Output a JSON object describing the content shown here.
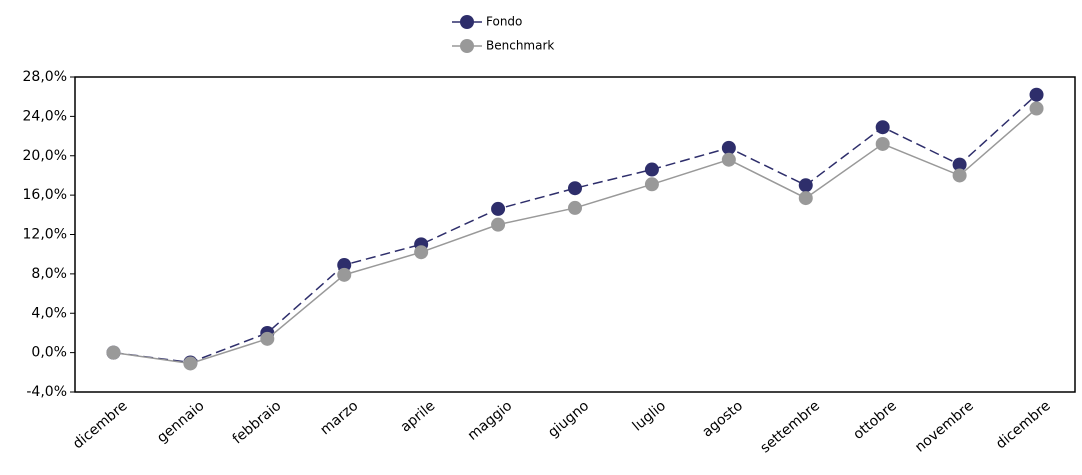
{
  "chart_data": {
    "type": "line",
    "categories": [
      "dicembre",
      "gennaio",
      "febbraio",
      "marzo",
      "aprile",
      "maggio",
      "giugno",
      "luglio",
      "agosto",
      "settembre",
      "ottobre",
      "novembre",
      "dicembre"
    ],
    "series": [
      {
        "name": "Fondo",
        "color": "#2e2e6b",
        "dash": true,
        "values": [
          0,
          -1.0,
          2.0,
          8.9,
          11.0,
          14.6,
          16.7,
          18.6,
          20.8,
          17.0,
          22.9,
          19.1,
          26.2
        ]
      },
      {
        "name": "Benchmark",
        "color": "#999999",
        "dash": false,
        "values": [
          0,
          -1.1,
          1.4,
          7.9,
          10.2,
          13.0,
          14.7,
          17.1,
          19.6,
          15.7,
          21.2,
          18.0,
          24.8
        ]
      }
    ],
    "ylim": [
      -4,
      28
    ],
    "yticks": [
      {
        "value": -4,
        "label": "-4,0%"
      },
      {
        "value": 0,
        "label": "0,0%"
      },
      {
        "value": 4,
        "label": "4,0%"
      },
      {
        "value": 8,
        "label": "8,0%"
      },
      {
        "value": 12,
        "label": "12,0%"
      },
      {
        "value": 16,
        "label": "16,0%"
      },
      {
        "value": 20,
        "label": "20,0%"
      },
      {
        "value": 24,
        "label": "24,0%"
      },
      {
        "value": 28,
        "label": "28,0%"
      }
    ],
    "legend": "top"
  }
}
